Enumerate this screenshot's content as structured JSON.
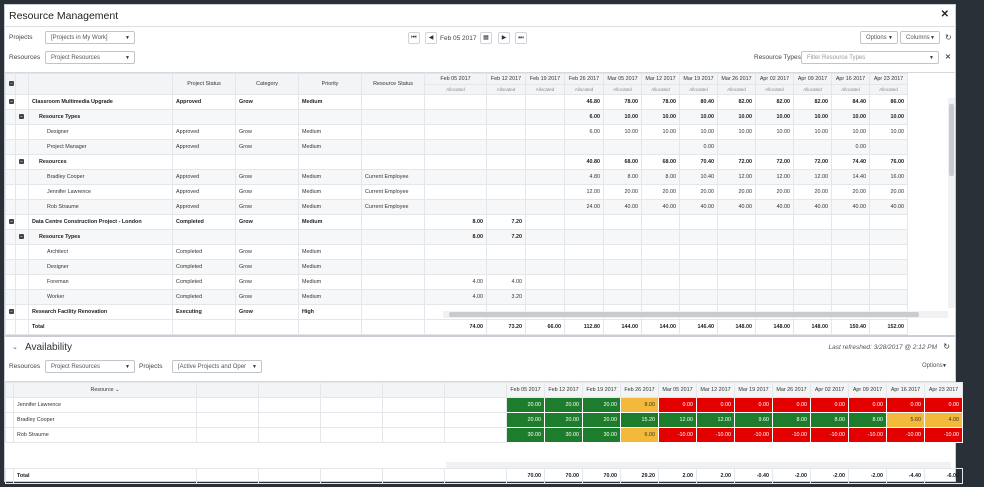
{
  "title": "Resource Management",
  "filters": {
    "projects_label": "Projects",
    "projects_value": "[Projects in My Work]",
    "resources_label": "Resources",
    "resources_value": "Project Resources",
    "date": "Feb 05 2017",
    "options": "Options",
    "columns": "Columns",
    "resource_types_label": "Resource Types",
    "resource_types_placeholder": "Filter Resource Types"
  },
  "grid": {
    "headers": [
      "Project Status",
      "Category",
      "Priority",
      "Resource Status"
    ],
    "dates": [
      "Feb 05 2017",
      "Feb 12 2017",
      "Feb 19 2017",
      "Feb 26 2017",
      "Mar 05 2017",
      "Mar 12 2017",
      "Mar 19 2017",
      "Mar 26 2017",
      "Apr 02 2017",
      "Apr 09 2017",
      "Apr 16 2017",
      "Apr 23 2017"
    ],
    "sub": "Allocated",
    "rows": [
      {
        "lvl": 0,
        "tog": true,
        "bold": true,
        "name": "Classroom Multimedia Upgrade",
        "c": [
          "Approved",
          "Grow",
          "Medium",
          ""
        ],
        "v": [
          "",
          "",
          "",
          "46.80",
          "78.00",
          "78.00",
          "80.40",
          "82.00",
          "82.00",
          "82.00",
          "84.40",
          "86.00"
        ]
      },
      {
        "lvl": 1,
        "tog": true,
        "bold": true,
        "name": "Resource Types",
        "c": [
          "",
          "",
          "",
          ""
        ],
        "v": [
          "",
          "",
          "",
          "6.00",
          "10.00",
          "10.00",
          "10.00",
          "10.00",
          "10.00",
          "10.00",
          "10.00",
          "10.00"
        ]
      },
      {
        "lvl": 2,
        "name": "Designer",
        "c": [
          "Approved",
          "Grow",
          "Medium",
          ""
        ],
        "v": [
          "",
          "",
          "",
          "6.00",
          "10.00",
          "10.00",
          "10.00",
          "10.00",
          "10.00",
          "10.00",
          "10.00",
          "10.00"
        ]
      },
      {
        "lvl": 2,
        "name": "Project Manager",
        "c": [
          "Approved",
          "Grow",
          "Medium",
          ""
        ],
        "v": [
          "",
          "",
          "",
          "",
          "",
          "",
          "0.00",
          "",
          "",
          "",
          "0.00",
          ""
        ]
      },
      {
        "lvl": 1,
        "tog": true,
        "bold": true,
        "name": "Resources",
        "c": [
          "",
          "",
          "",
          ""
        ],
        "v": [
          "",
          "",
          "",
          "40.80",
          "68.00",
          "68.00",
          "70.40",
          "72.00",
          "72.00",
          "72.00",
          "74.40",
          "76.00"
        ]
      },
      {
        "lvl": 2,
        "name": "Bradley Cooper",
        "c": [
          "Approved",
          "Grow",
          "Medium",
          "Current Employee"
        ],
        "v": [
          "",
          "",
          "",
          "4.80",
          "8.00",
          "8.00",
          "10.40",
          "12.00",
          "12.00",
          "12.00",
          "14.40",
          "16.00"
        ]
      },
      {
        "lvl": 2,
        "name": "Jennifer Lawrence",
        "c": [
          "Approved",
          "Grow",
          "Medium",
          "Current Employee"
        ],
        "v": [
          "",
          "",
          "",
          "12.00",
          "20.00",
          "20.00",
          "20.00",
          "20.00",
          "20.00",
          "20.00",
          "20.00",
          "20.00"
        ]
      },
      {
        "lvl": 2,
        "name": "Rob Straume",
        "c": [
          "Approved",
          "Grow",
          "Medium",
          "Current Employee"
        ],
        "v": [
          "",
          "",
          "",
          "24.00",
          "40.00",
          "40.00",
          "40.00",
          "40.00",
          "40.00",
          "40.00",
          "40.00",
          "40.00"
        ]
      },
      {
        "lvl": 0,
        "tog": true,
        "bold": true,
        "name": "Data Centre Construction Project - London",
        "c": [
          "Completed",
          "Grow",
          "Medium",
          ""
        ],
        "v": [
          "8.00",
          "7.20",
          "",
          "",
          "",
          "",
          "",
          "",
          "",
          "",
          "",
          ""
        ]
      },
      {
        "lvl": 1,
        "tog": true,
        "bold": true,
        "name": "Resource Types",
        "c": [
          "",
          "",
          "",
          ""
        ],
        "v": [
          "8.00",
          "7.20",
          "",
          "",
          "",
          "",
          "",
          "",
          "",
          "",
          "",
          ""
        ]
      },
      {
        "lvl": 2,
        "name": "Architect",
        "c": [
          "Completed",
          "Grow",
          "Medium",
          ""
        ],
        "v": [
          "",
          "",
          "",
          "",
          "",
          "",
          "",
          "",
          "",
          "",
          "",
          ""
        ]
      },
      {
        "lvl": 2,
        "name": "Designer",
        "c": [
          "Completed",
          "Grow",
          "Medium",
          ""
        ],
        "v": [
          "",
          "",
          "",
          "",
          "",
          "",
          "",
          "",
          "",
          "",
          "",
          ""
        ]
      },
      {
        "lvl": 2,
        "name": "Foreman",
        "c": [
          "Completed",
          "Grow",
          "Medium",
          ""
        ],
        "v": [
          "4.00",
          "4.00",
          "",
          "",
          "",
          "",
          "",
          "",
          "",
          "",
          "",
          ""
        ]
      },
      {
        "lvl": 2,
        "name": "Worker",
        "c": [
          "Completed",
          "Grow",
          "Medium",
          ""
        ],
        "v": [
          "4.00",
          "3.20",
          "",
          "",
          "",
          "",
          "",
          "",
          "",
          "",
          "",
          ""
        ]
      },
      {
        "lvl": 0,
        "tog": true,
        "bold": true,
        "name": "Research Facility Renovation",
        "c": [
          "Executing",
          "Grow",
          "High",
          ""
        ],
        "v": [
          "",
          "",
          "",
          "",
          "",
          "",
          "",
          "",
          "",
          "",
          "",
          ""
        ]
      }
    ],
    "total_label": "Total",
    "totals": [
      "74.00",
      "73.20",
      "66.00",
      "112.80",
      "144.00",
      "144.00",
      "146.40",
      "148.00",
      "148.00",
      "148.00",
      "150.40",
      "152.00"
    ]
  },
  "availability": {
    "title": "Availability",
    "refreshed": "Last refreshed: 3/28/2017 @ 2:12 PM",
    "resources_label": "Resources",
    "resources_value": "Project Resources",
    "projects_label": "Projects",
    "projects_value": "[Active Projects and Oper",
    "options": "Options",
    "col_resource": "Resource",
    "rows": [
      {
        "name": "Jennifer Lawrence",
        "v": [
          "20.00",
          "20.00",
          "20.00",
          "8.00",
          "0.00",
          "0.00",
          "0.00",
          "0.00",
          "0.00",
          "0.00",
          "0.00",
          "0.00"
        ],
        "s": [
          "g",
          "g",
          "g",
          "y",
          "r",
          "r",
          "r",
          "r",
          "r",
          "r",
          "r",
          "r"
        ]
      },
      {
        "name": "Bradley Cooper",
        "v": [
          "20.00",
          "20.00",
          "20.00",
          "15.20",
          "12.00",
          "12.00",
          "9.60",
          "8.00",
          "8.00",
          "8.00",
          "5.60",
          "4.00"
        ],
        "s": [
          "g",
          "g",
          "g",
          "g",
          "g",
          "g",
          "g",
          "g",
          "g",
          "g",
          "y",
          "y"
        ]
      },
      {
        "name": "Rob Straume",
        "v": [
          "30.00",
          "30.00",
          "30.00",
          "6.00",
          "-10.00",
          "-10.00",
          "-10.00",
          "-10.00",
          "-10.00",
          "-10.00",
          "-10.00",
          "-10.00"
        ],
        "s": [
          "g",
          "g",
          "g",
          "y",
          "r",
          "r",
          "r",
          "r",
          "r",
          "r",
          "r",
          "r"
        ]
      }
    ],
    "total_label": "Total",
    "totals": [
      "70.00",
      "70.00",
      "70.00",
      "29.20",
      "2.00",
      "2.00",
      "-0.40",
      "-2.00",
      "-2.00",
      "-2.00",
      "-4.40",
      "-6.00"
    ]
  },
  "colors": {
    "green": "#1e7d2c",
    "red": "#e50000",
    "yellow": "#f2b93b"
  }
}
